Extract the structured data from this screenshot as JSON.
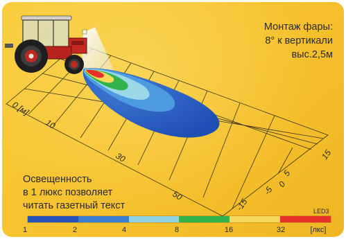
{
  "mount_info": {
    "line1": "Монтаж фары:",
    "line2": "8° к вертикали",
    "line3": "выс.2,5м"
  },
  "note": {
    "line1": "Освещенность",
    "line2": "в 1 люкс позволяет",
    "line3": "читать газетный текст"
  },
  "scale": {
    "name": "LED3",
    "unit": "[лкс]",
    "ticks": [
      "1",
      "2",
      "4",
      "8",
      "16",
      "32"
    ],
    "colors": [
      "#2553b8",
      "#3a7fd0",
      "#8fd2e6",
      "#2fb34a",
      "#f6d75a",
      "#e8312a"
    ]
  },
  "grid": {
    "distance_labels": [
      "0 [м]",
      "10",
      "30",
      "50"
    ],
    "lateral_labels": [
      "15",
      "5",
      "0",
      "-5",
      "-15"
    ]
  },
  "icons": {
    "tractor": "tractor-icon",
    "light_cone": "headlight-beam"
  }
}
